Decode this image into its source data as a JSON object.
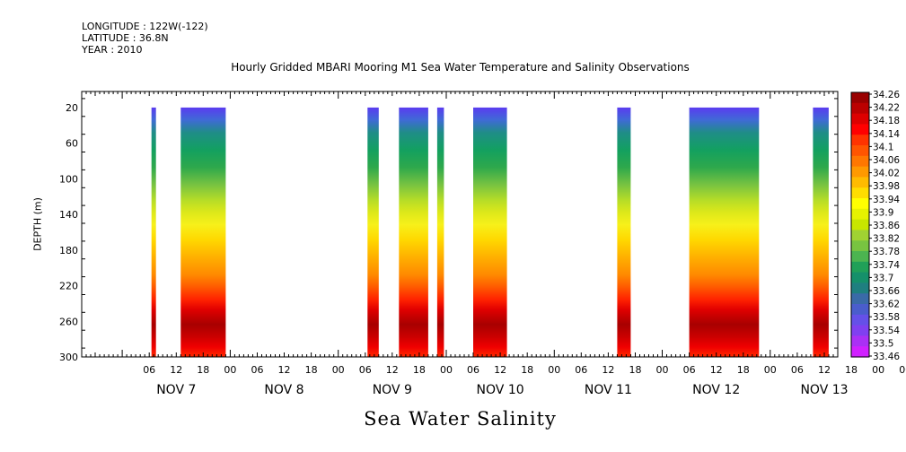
{
  "meta": {
    "longitude": "LONGITUDE : 122W(-122)",
    "latitude": "LATITUDE : 36.8N",
    "year": "YEAR : 2010"
  },
  "chart_data": {
    "type": "heatmap",
    "title": "Hourly Gridded MBARI Mooring M1 Sea Water Temperature and Salinity Observations",
    "xlabel": "Sea Water Salinity",
    "ylabel": "DEPTH (m)",
    "x_hour_ticks": [
      "06",
      "12",
      "18",
      "00",
      "06",
      "12",
      "18",
      "00",
      "06",
      "12",
      "18",
      "00",
      "06",
      "12",
      "18",
      "00",
      "06",
      "12",
      "18",
      "00",
      "06",
      "12",
      "18",
      "00",
      "06",
      "12",
      "18",
      "00",
      "06",
      "12",
      "18",
      "00"
    ],
    "x_day_labels": [
      "NOV  7",
      "NOV  8",
      "NOV  9",
      "NOV 10",
      "NOV 11",
      "NOV 12",
      "NOV 13"
    ],
    "y_tick_labels": [
      "20",
      "60",
      "100",
      "140",
      "180",
      "220",
      "260",
      "300"
    ],
    "y_ticks": [
      20,
      60,
      100,
      140,
      180,
      220,
      260,
      300
    ],
    "ylim": [
      300,
      2
    ],
    "xlim_hours_since_nov7_00": [
      -9,
      159
    ],
    "colorbar_labels": [
      "34.26",
      "34.22",
      "34.18",
      "34.14",
      "34.1",
      "34.06",
      "34.02",
      "33.98",
      "33.94",
      "33.9",
      "33.86",
      "33.82",
      "33.78",
      "33.74",
      "33.7",
      "33.66",
      "33.62",
      "33.58",
      "33.54",
      "33.5",
      "33.46"
    ],
    "colorbar_colors": [
      "#990000",
      "#bb0000",
      "#dd0000",
      "#ff0000",
      "#ff3300",
      "#ff5500",
      "#ff7700",
      "#ff9900",
      "#ffbb00",
      "#ffdd00",
      "#ffff00",
      "#e6f200",
      "#c8e600",
      "#a0d232",
      "#78c341",
      "#4cb450",
      "#20a058",
      "#15906a",
      "#1f7f80",
      "#3a6aa8",
      "#4a5dcc",
      "#6550e8",
      "#8040f0",
      "#aa30f5",
      "#d020ff"
    ],
    "data_segments_hours_since_nov7_00": [
      {
        "start": 6.5,
        "end": 7.5
      },
      {
        "start": 13,
        "end": 23
      },
      {
        "start": 54.5,
        "end": 57
      },
      {
        "start": 61.5,
        "end": 68
      },
      {
        "start": 70,
        "end": 71.5
      },
      {
        "start": 78,
        "end": 85.5
      },
      {
        "start": 110,
        "end": 113
      },
      {
        "start": 126,
        "end": 141.5
      },
      {
        "start": 153.5,
        "end": 157
      }
    ]
  }
}
